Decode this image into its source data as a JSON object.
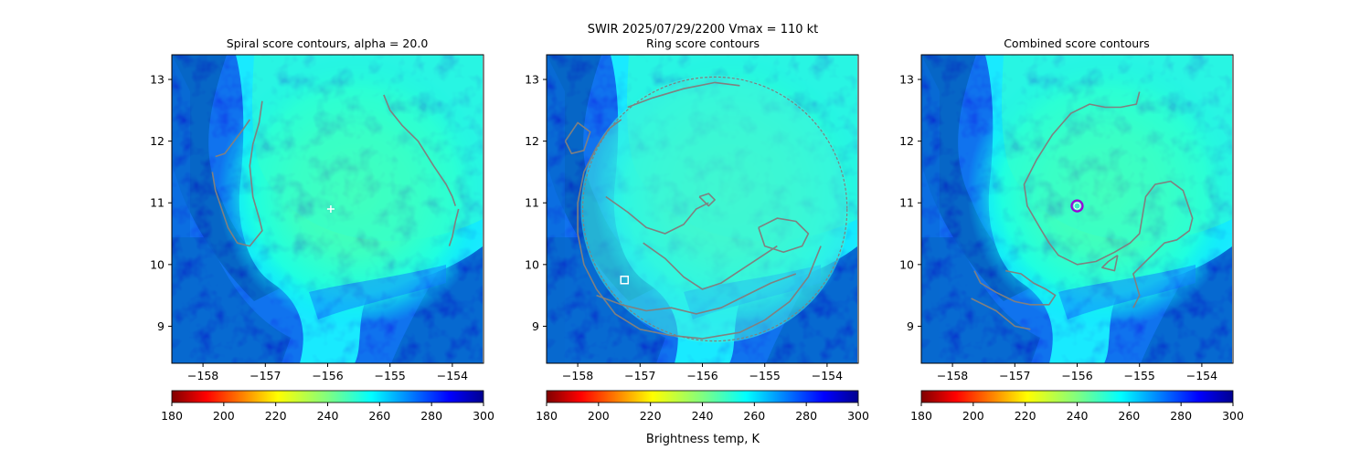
{
  "figure": {
    "suptitle_line1": "SWIR  2025/07/29/2200    Vmax = 110 kt",
    "colorbar_label": "Brightness temp, K"
  },
  "chart_data": [
    {
      "type": "heatmap",
      "title": "Spiral score contours, alpha = 20.0",
      "xlim": [
        -158.5,
        -153.5
      ],
      "ylim": [
        8.4,
        13.4
      ],
      "xticks": [
        -158,
        -157,
        -156,
        -155,
        -154
      ],
      "yticks": [
        9,
        10,
        11,
        12,
        13
      ],
      "colorbar": {
        "min": 180,
        "max": 300,
        "ticks": [
          180,
          200,
          220,
          240,
          260,
          280,
          300
        ],
        "colormap": "jet_r"
      },
      "center_marker": {
        "shape": "plus",
        "color": "#ffffff",
        "x": -155.95,
        "y": 10.9
      },
      "contour_color": "#808080",
      "contours": [
        [
          [
            -157.8,
            11.75
          ],
          [
            -157.65,
            11.8
          ],
          [
            -157.5,
            12.0
          ],
          [
            -157.35,
            12.2
          ],
          [
            -157.25,
            12.35
          ]
        ],
        [
          [
            -157.05,
            12.65
          ],
          [
            -157.1,
            12.3
          ],
          [
            -157.2,
            11.95
          ],
          [
            -157.25,
            11.6
          ],
          [
            -157.2,
            11.1
          ],
          [
            -157.1,
            10.75
          ],
          [
            -157.05,
            10.55
          ],
          [
            -157.25,
            10.3
          ],
          [
            -157.45,
            10.35
          ],
          [
            -157.6,
            10.6
          ],
          [
            -157.7,
            10.9
          ],
          [
            -157.8,
            11.2
          ],
          [
            -157.85,
            11.5
          ]
        ],
        [
          [
            -155.1,
            12.75
          ],
          [
            -155.0,
            12.5
          ],
          [
            -154.8,
            12.25
          ],
          [
            -154.55,
            12.0
          ],
          [
            -154.3,
            11.6
          ],
          [
            -154.1,
            11.3
          ],
          [
            -154.0,
            11.1
          ],
          [
            -153.95,
            10.95
          ]
        ],
        [
          [
            -153.9,
            10.9
          ],
          [
            -153.95,
            10.7
          ],
          [
            -154.0,
            10.45
          ],
          [
            -154.05,
            10.3
          ]
        ]
      ]
    },
    {
      "type": "heatmap",
      "title": "Ring score contours",
      "xlim": [
        -158.5,
        -153.5
      ],
      "ylim": [
        8.4,
        13.4
      ],
      "xticks": [
        -158,
        -157,
        -156,
        -155,
        -154
      ],
      "yticks": [
        9,
        10,
        11,
        12,
        13
      ],
      "colorbar": {
        "min": 180,
        "max": 300,
        "ticks": [
          180,
          200,
          220,
          240,
          260,
          280,
          300
        ],
        "colormap": "jet_r"
      },
      "center_marker": {
        "shape": "square",
        "color": "#ffffff",
        "x": -157.25,
        "y": 9.75
      },
      "contour_color": "#808080",
      "contour_region": {
        "center": [
          -155.8,
          10.9
        ],
        "radius_deg": 2.15
      },
      "contours": [
        [
          [
            -157.3,
            12.35
          ],
          [
            -157.5,
            12.2
          ],
          [
            -157.7,
            11.9
          ],
          [
            -157.9,
            11.5
          ],
          [
            -158.0,
            11.0
          ],
          [
            -158.0,
            10.5
          ],
          [
            -157.9,
            10.0
          ],
          [
            -157.7,
            9.6
          ],
          [
            -157.4,
            9.2
          ],
          [
            -157.0,
            8.95
          ],
          [
            -156.5,
            8.85
          ],
          [
            -156.0,
            8.8
          ],
          [
            -155.4,
            8.9
          ],
          [
            -155.0,
            9.1
          ],
          [
            -154.6,
            9.4
          ],
          [
            -154.3,
            9.8
          ],
          [
            -154.1,
            10.3
          ]
        ],
        [
          [
            -157.55,
            11.1
          ],
          [
            -157.2,
            10.85
          ],
          [
            -156.9,
            10.6
          ],
          [
            -156.6,
            10.5
          ],
          [
            -156.3,
            10.65
          ],
          [
            -156.1,
            10.9
          ],
          [
            -155.9,
            11.0
          ]
        ],
        [
          [
            -156.95,
            10.35
          ],
          [
            -156.6,
            10.1
          ],
          [
            -156.3,
            9.8
          ],
          [
            -156.0,
            9.6
          ],
          [
            -155.7,
            9.7
          ],
          [
            -155.4,
            9.9
          ],
          [
            -155.1,
            10.1
          ],
          [
            -154.8,
            10.3
          ]
        ],
        [
          [
            -157.2,
            12.55
          ],
          [
            -156.8,
            12.7
          ],
          [
            -156.3,
            12.85
          ],
          [
            -155.8,
            12.95
          ],
          [
            -155.4,
            12.9
          ]
        ],
        [
          [
            -158.2,
            12.0
          ],
          [
            -158.0,
            12.3
          ],
          [
            -157.8,
            12.15
          ],
          [
            -157.9,
            11.85
          ],
          [
            -158.1,
            11.8
          ],
          [
            -158.2,
            12.0
          ]
        ],
        [
          [
            -156.05,
            11.1
          ],
          [
            -155.9,
            11.15
          ],
          [
            -155.8,
            11.05
          ],
          [
            -155.9,
            10.95
          ],
          [
            -156.05,
            11.1
          ]
        ],
        [
          [
            -155.1,
            10.6
          ],
          [
            -154.8,
            10.75
          ],
          [
            -154.5,
            10.7
          ],
          [
            -154.3,
            10.5
          ],
          [
            -154.4,
            10.3
          ],
          [
            -154.7,
            10.2
          ],
          [
            -155.0,
            10.3
          ],
          [
            -155.1,
            10.6
          ]
        ],
        [
          [
            -157.7,
            9.5
          ],
          [
            -157.3,
            9.35
          ],
          [
            -156.9,
            9.25
          ],
          [
            -156.5,
            9.3
          ],
          [
            -156.1,
            9.2
          ],
          [
            -155.7,
            9.3
          ],
          [
            -155.3,
            9.5
          ],
          [
            -154.9,
            9.7
          ],
          [
            -154.5,
            9.85
          ]
        ]
      ]
    },
    {
      "type": "heatmap",
      "title": "Combined score contours",
      "xlim": [
        -158.5,
        -153.5
      ],
      "ylim": [
        8.4,
        13.4
      ],
      "xticks": [
        -158,
        -157,
        -156,
        -155,
        -154
      ],
      "yticks": [
        9,
        10,
        11,
        12,
        13
      ],
      "colorbar": {
        "min": 180,
        "max": 300,
        "ticks": [
          180,
          200,
          220,
          240,
          260,
          280,
          300
        ],
        "colormap": "jet_r"
      },
      "center_marker": {
        "shape": "circle",
        "color": "#9b00d8",
        "x": -156.0,
        "y": 10.95
      },
      "contour_color": "#808080",
      "contours": [
        [
          [
            -155.0,
            12.8
          ],
          [
            -155.05,
            12.6
          ],
          [
            -155.3,
            12.55
          ],
          [
            -155.55,
            12.55
          ],
          [
            -155.8,
            12.6
          ],
          [
            -156.1,
            12.45
          ],
          [
            -156.4,
            12.1
          ],
          [
            -156.65,
            11.7
          ],
          [
            -156.85,
            11.3
          ],
          [
            -156.8,
            10.95
          ],
          [
            -156.6,
            10.6
          ],
          [
            -156.45,
            10.35
          ],
          [
            -156.3,
            10.15
          ],
          [
            -156.0,
            10.0
          ],
          [
            -155.7,
            10.05
          ],
          [
            -155.4,
            10.2
          ],
          [
            -155.15,
            10.35
          ],
          [
            -155.0,
            10.5
          ],
          [
            -154.95,
            10.8
          ],
          [
            -154.9,
            11.1
          ],
          [
            -154.75,
            11.3
          ],
          [
            -154.5,
            11.35
          ],
          [
            -154.3,
            11.2
          ],
          [
            -154.2,
            10.9
          ],
          [
            -154.15,
            10.75
          ],
          [
            -154.2,
            10.55
          ],
          [
            -154.4,
            10.4
          ],
          [
            -154.6,
            10.35
          ],
          [
            -154.75,
            10.2
          ],
          [
            -154.95,
            10.0
          ],
          [
            -155.1,
            9.85
          ],
          [
            -155.0,
            9.5
          ],
          [
            -155.1,
            9.3
          ]
        ],
        [
          [
            -157.15,
            9.9
          ],
          [
            -156.9,
            9.85
          ],
          [
            -156.7,
            9.7
          ],
          [
            -156.5,
            9.6
          ],
          [
            -156.35,
            9.5
          ],
          [
            -156.45,
            9.35
          ],
          [
            -156.75,
            9.35
          ],
          [
            -157.0,
            9.4
          ],
          [
            -157.3,
            9.55
          ],
          [
            -157.55,
            9.7
          ],
          [
            -157.65,
            9.9
          ]
        ],
        [
          [
            -157.7,
            9.45
          ],
          [
            -157.3,
            9.25
          ],
          [
            -157.0,
            9.0
          ],
          [
            -156.75,
            8.95
          ]
        ],
        [
          [
            -155.35,
            10.15
          ],
          [
            -155.5,
            10.05
          ],
          [
            -155.6,
            9.95
          ],
          [
            -155.4,
            9.9
          ],
          [
            -155.35,
            10.15
          ]
        ]
      ]
    }
  ]
}
